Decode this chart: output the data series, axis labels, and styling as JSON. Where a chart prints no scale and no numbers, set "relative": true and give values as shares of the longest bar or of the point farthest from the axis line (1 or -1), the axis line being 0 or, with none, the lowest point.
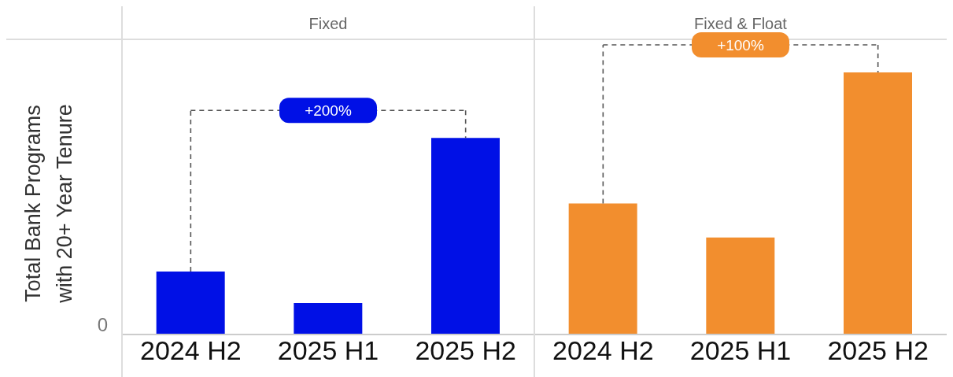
{
  "chart_data": {
    "type": "bar",
    "ylabel": "Total Bank Programs with 20+ Year Tenure",
    "categories": [
      "2024 H2",
      "2025 H1",
      "2025 H2",
      "2024 H2",
      "2025 H1",
      "2025 H2"
    ],
    "relative": true,
    "stacked": true,
    "series": [
      {
        "color": "#0010e6",
        "values": [
          0.24,
          0.12,
          0.75,
          null,
          null,
          null
        ]
      },
      {
        "color": "#f28e2e",
        "values": [
          null,
          null,
          null,
          0.5,
          0.37,
          1
        ]
      }
    ],
    "annotations": [
      "Fixed",
      "Fixed & Float",
      "+200%",
      "+100%",
      "0"
    ]
  }
}
